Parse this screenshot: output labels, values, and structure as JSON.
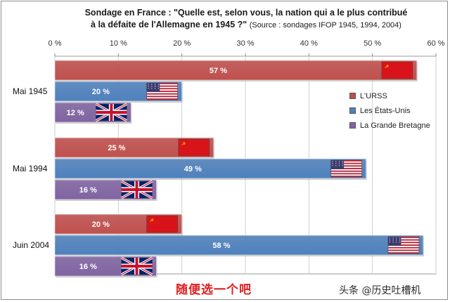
{
  "chart_data": {
    "type": "bar",
    "orientation": "horizontal",
    "title": "Sondage en France : \"Quelle est, selon vous, la nation qui a le plus contribué",
    "title_line2": "à la défaite de l'Allemagne en 1945 ?\"",
    "source": "(Source : sondages IFOP 1945, 1994, 2004)",
    "categories": [
      "Mai 1945",
      "Mai 1994",
      "Juin 2004"
    ],
    "series": [
      {
        "name": "L'URSS",
        "color": "#c0504d",
        "flag": "ussr-flag",
        "values": [
          57,
          25,
          20
        ]
      },
      {
        "name": "Les États-Unis",
        "color": "#4f81bd",
        "flag": "usa-flag",
        "values": [
          20,
          49,
          58
        ]
      },
      {
        "name": "La Grande Bretagne",
        "color": "#8064a2",
        "flag": "uk-flag",
        "values": [
          12,
          16,
          16
        ]
      }
    ],
    "value_suffix": " %",
    "xlim": [
      0,
      60
    ],
    "xticks": [
      "0 %",
      "10 %",
      "20 %",
      "30 %",
      "40 %",
      "50 %",
      "60 %"
    ],
    "x_axis_position": "top",
    "grid": true,
    "legend_position": "right"
  },
  "caption": "随便选一个吧",
  "watermark": "头条 @历史吐槽机"
}
